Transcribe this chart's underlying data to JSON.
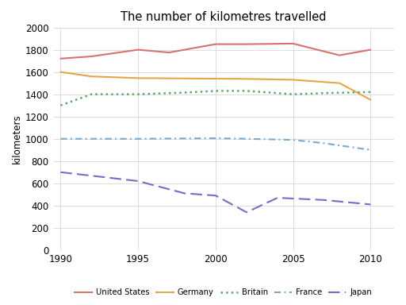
{
  "title": "The number of kilometres travelled",
  "ylabel": "kilometers",
  "xlim": [
    1989.5,
    2011.5
  ],
  "ylim": [
    0,
    2000
  ],
  "yticks": [
    0,
    200,
    400,
    600,
    800,
    1000,
    1200,
    1400,
    1600,
    1800,
    2000
  ],
  "xticks": [
    1990,
    1995,
    2000,
    2005,
    2010
  ],
  "series": {
    "United States": {
      "x": [
        1990,
        1992,
        1995,
        1997,
        2000,
        2002,
        2005,
        2008,
        2010
      ],
      "y": [
        1720,
        1740,
        1800,
        1775,
        1850,
        1850,
        1855,
        1750,
        1800
      ],
      "color": "#d4756b",
      "linestyle": "-",
      "linewidth": 1.5
    },
    "Germany": {
      "x": [
        1990,
        1992,
        1995,
        2000,
        2002,
        2005,
        2008,
        2010
      ],
      "y": [
        1600,
        1560,
        1545,
        1540,
        1538,
        1530,
        1500,
        1350
      ],
      "color": "#e8a44a",
      "linestyle": "-",
      "linewidth": 1.5
    },
    "Britain": {
      "x": [
        1990,
        1992,
        1995,
        1998,
        2000,
        2002,
        2005,
        2007,
        2010
      ],
      "y": [
        1300,
        1400,
        1400,
        1415,
        1430,
        1430,
        1400,
        1410,
        1420
      ],
      "color": "#5aaa6a",
      "linestyle": ":",
      "linewidth": 1.8
    },
    "France": {
      "x": [
        1990,
        1995,
        2000,
        2002,
        2005,
        2007,
        2010
      ],
      "y": [
        1000,
        1000,
        1005,
        1000,
        990,
        960,
        900
      ],
      "color": "#7aaad0",
      "linestyle": "--",
      "linewidth": 1.5,
      "dash_pattern": [
        4,
        2,
        1,
        2
      ]
    },
    "Japan": {
      "x": [
        1990,
        1995,
        1998,
        2000,
        2002,
        2004,
        2007,
        2010
      ],
      "y": [
        700,
        620,
        510,
        490,
        340,
        470,
        450,
        410
      ],
      "color": "#7070c8",
      "linestyle": "--",
      "linewidth": 1.5,
      "dash_pattern": [
        7,
        3
      ]
    }
  },
  "legend_order": [
    "United States",
    "Germany",
    "Britain",
    "France",
    "Japan"
  ],
  "background_color": "#ffffff",
  "grid_color": "#d8d8d8"
}
